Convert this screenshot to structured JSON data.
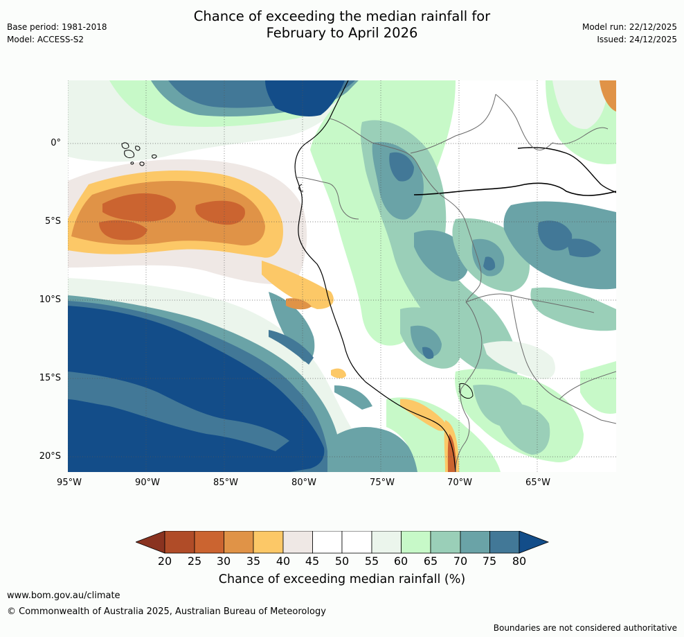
{
  "header": {
    "base_period": "Base period: 1981-2018",
    "model": "Model: ACCESS-S2",
    "model_run": "Model run: 22/12/2025",
    "issued": "Issued: 24/12/2025"
  },
  "title": {
    "line1": "Chance of exceeding the median rainfall for",
    "line2": "February to April 2026"
  },
  "map": {
    "lat_labels": [
      "0°",
      "5°S",
      "10°S",
      "15°S",
      "20°S"
    ],
    "lon_labels": [
      "95°W",
      "90°W",
      "85°W",
      "80°W",
      "75°W",
      "70°W",
      "65°W"
    ],
    "lat_values": [
      0,
      -5,
      -10,
      -15,
      -20
    ],
    "lon_values": [
      -95,
      -90,
      -85,
      -80,
      -75,
      -70,
      -65
    ],
    "extent": {
      "lon_min": -95,
      "lon_max": -60,
      "lat_min": -21,
      "lat_max": 4
    }
  },
  "colorbar": {
    "ticks": [
      "20",
      "25",
      "30",
      "35",
      "40",
      "45",
      "50",
      "55",
      "60",
      "65",
      "70",
      "75",
      "80"
    ],
    "colors": {
      "below_20": "#8a3320",
      "c20_25": "#b04c28",
      "c25_30": "#cb6430",
      "c30_35": "#e09347",
      "c35_40": "#fcc867",
      "c40_45": "#efe8e5",
      "c45_50": "#ffffff",
      "c50_55": "#ffffff",
      "c55_60": "#ebf5ec",
      "c60_65": "#c7f9c8",
      "c65_70": "#9acfb8",
      "c70_75": "#6aa3a7",
      "c75_80": "#427897",
      "above_80": "#134d89"
    },
    "label": "Chance of exceeding median rainfall (%)"
  },
  "footer": {
    "url": "www.bom.gov.au/climate",
    "copyright": "© Commonwealth of Australia 2025, Australian Bureau of Meteorology",
    "disclaimer": "Boundaries are not considered authoritative"
  }
}
